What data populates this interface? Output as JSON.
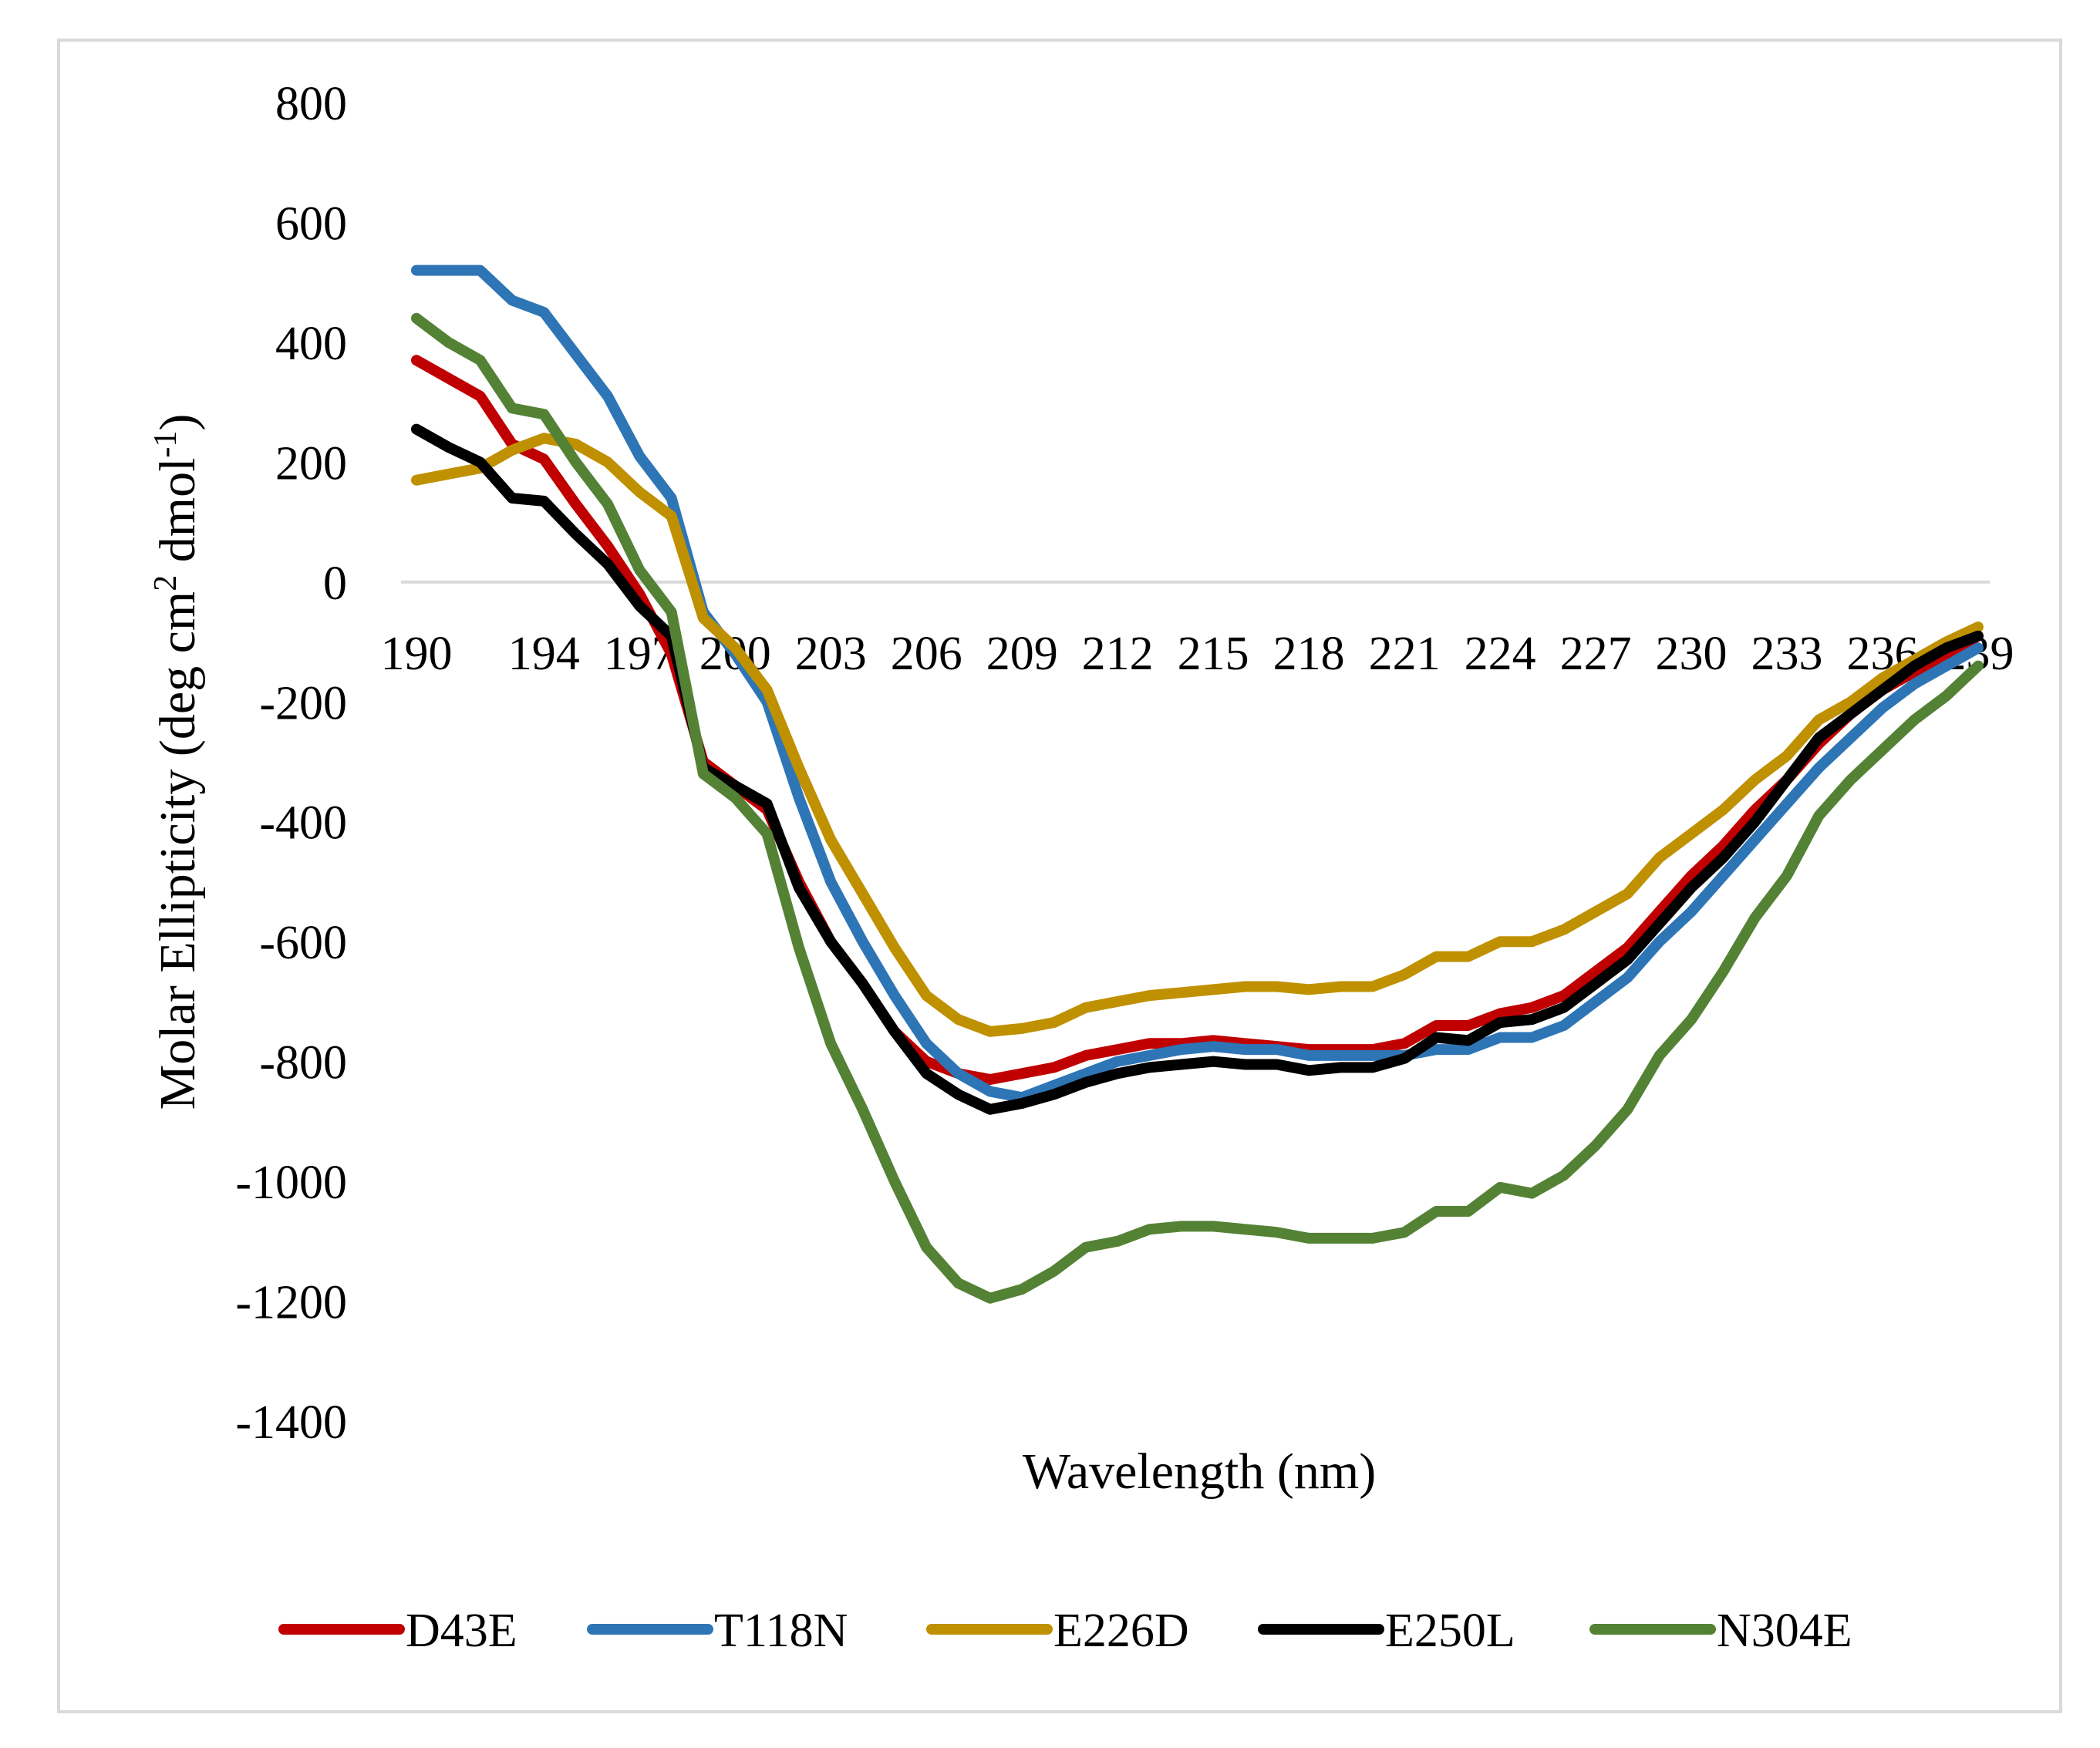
{
  "chart_data": {
    "type": "line",
    "title": "",
    "xlabel": "Wavelength (nm)",
    "ylabel_main": "Molar Ellipticity (deg cm",
    "ylabel_sup1": "2",
    "ylabel_mid": " dmol",
    "ylabel_sup2": "-1",
    "ylabel_end": ")",
    "ylim": [
      -1400,
      800
    ],
    "yticks": [
      800,
      600,
      400,
      200,
      0,
      -200,
      -400,
      -600,
      -800,
      -1000,
      -1200,
      -1400
    ],
    "ytick_labels": [
      "800",
      "600",
      "400",
      "200",
      "0",
      "-200",
      "-400",
      "-600",
      "-800",
      "-1000",
      "-1200",
      "-1400"
    ],
    "x_range": [
      190,
      239
    ],
    "x": [
      190,
      191,
      192,
      193,
      194,
      195,
      196,
      197,
      198,
      199,
      200,
      201,
      202,
      203,
      204,
      205,
      206,
      207,
      208,
      209,
      210,
      211,
      212,
      213,
      214,
      215,
      216,
      217,
      218,
      219,
      220,
      221,
      222,
      223,
      224,
      225,
      226,
      227,
      228,
      229,
      230,
      231,
      232,
      233,
      234,
      235,
      236,
      237,
      238,
      239
    ],
    "xticks": [
      190,
      194,
      197,
      200,
      203,
      206,
      209,
      212,
      215,
      218,
      221,
      224,
      227,
      230,
      233,
      236,
      239
    ],
    "xtick_labels": [
      "190",
      "194",
      "197",
      "200",
      "203",
      "206",
      "209",
      "212",
      "215",
      "218",
      "221",
      "224",
      "227",
      "230",
      "233",
      "236",
      "239"
    ],
    "grid": false,
    "legend_position": "bottom",
    "series": [
      {
        "name": "D43E",
        "color": "#c00000",
        "values": [
          370,
          340,
          310,
          230,
          205,
          130,
          60,
          -20,
          -120,
          -300,
          -340,
          -380,
          -500,
          -600,
          -670,
          -750,
          -800,
          -820,
          -830,
          -820,
          -810,
          -790,
          -780,
          -770,
          -770,
          -765,
          -770,
          -775,
          -780,
          -780,
          -780,
          -770,
          -740,
          -740,
          -720,
          -710,
          -690,
          -650,
          -610,
          -550,
          -490,
          -440,
          -380,
          -330,
          -270,
          -220,
          -180,
          -150,
          -120,
          -90
        ]
      },
      {
        "name": "T118N",
        "color": "#2e75b6",
        "values": [
          520,
          520,
          520,
          470,
          450,
          380,
          310,
          210,
          140,
          -50,
          -120,
          -200,
          -360,
          -500,
          -600,
          -690,
          -770,
          -820,
          -850,
          -860,
          -840,
          -820,
          -800,
          -790,
          -780,
          -775,
          -780,
          -780,
          -790,
          -790,
          -790,
          -790,
          -780,
          -780,
          -760,
          -760,
          -740,
          -700,
          -660,
          -600,
          -550,
          -490,
          -430,
          -370,
          -310,
          -260,
          -210,
          -170,
          -140,
          -110
        ]
      },
      {
        "name": "E226D",
        "color": "#bf9000",
        "values": [
          170,
          180,
          190,
          220,
          240,
          230,
          200,
          150,
          110,
          -60,
          -110,
          -180,
          -310,
          -430,
          -520,
          -610,
          -690,
          -730,
          -750,
          -745,
          -735,
          -710,
          -700,
          -690,
          -685,
          -680,
          -675,
          -675,
          -680,
          -675,
          -675,
          -655,
          -625,
          -625,
          -600,
          -600,
          -580,
          -550,
          -520,
          -460,
          -420,
          -380,
          -330,
          -290,
          -230,
          -200,
          -160,
          -130,
          -100,
          -75
        ]
      },
      {
        "name": "E250L",
        "color": "#000000",
        "values": [
          255,
          225,
          200,
          140,
          135,
          80,
          30,
          -40,
          -90,
          -310,
          -340,
          -370,
          -510,
          -600,
          -670,
          -750,
          -820,
          -855,
          -880,
          -870,
          -855,
          -835,
          -820,
          -810,
          -805,
          -800,
          -805,
          -805,
          -815,
          -810,
          -810,
          -795,
          -760,
          -765,
          -735,
          -730,
          -710,
          -670,
          -630,
          -570,
          -510,
          -460,
          -400,
          -330,
          -260,
          -220,
          -180,
          -140,
          -110,
          -90
        ]
      },
      {
        "name": "N304E",
        "color": "#548235",
        "values": [
          440,
          400,
          370,
          290,
          280,
          200,
          130,
          20,
          -50,
          -320,
          -360,
          -420,
          -610,
          -770,
          -880,
          -1000,
          -1110,
          -1170,
          -1195,
          -1180,
          -1150,
          -1110,
          -1100,
          -1080,
          -1075,
          -1075,
          -1080,
          -1085,
          -1095,
          -1095,
          -1095,
          -1085,
          -1050,
          -1050,
          -1010,
          -1020,
          -990,
          -940,
          -880,
          -790,
          -730,
          -650,
          -560,
          -490,
          -390,
          -330,
          -280,
          -230,
          -190,
          -140
        ]
      }
    ]
  }
}
